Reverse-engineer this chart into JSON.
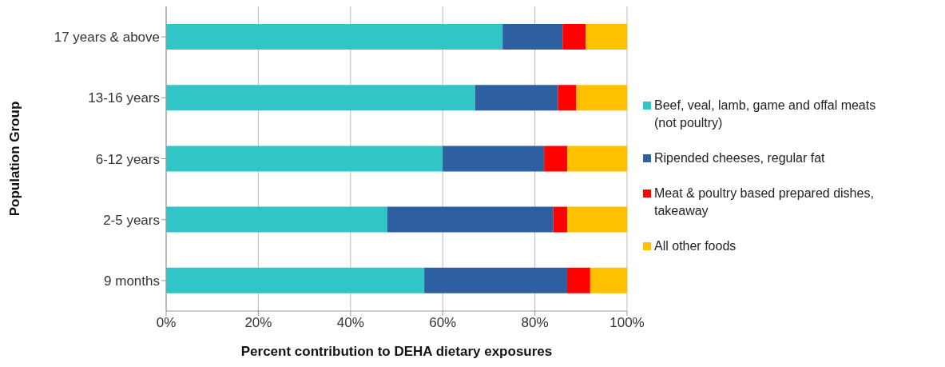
{
  "chart_data": {
    "type": "bar",
    "orientation": "horizontal",
    "stacked": true,
    "xlabel": "Percent contribution  to DEHA dietary  exposures",
    "ylabel": "Population  Group",
    "categories": [
      "17 years & above",
      "13-16 years",
      "6-12 years",
      "2-5 years",
      "9 months"
    ],
    "series": [
      {
        "name": "Beef, veal, lamb, game and offal meats (not poultry)",
        "color": "#31c6c6",
        "values": [
          73,
          67,
          60,
          48,
          56
        ]
      },
      {
        "name": "Ripended cheeses, regular fat",
        "color": "#2e5fa0",
        "values": [
          13,
          18,
          22,
          36,
          31
        ]
      },
      {
        "name": "Meat & poultry based prepared dishes, takeaway",
        "color": "#ff0000",
        "values": [
          5,
          4,
          5,
          3,
          5
        ]
      },
      {
        "name": "All other foods",
        "color": "#ffc000",
        "values": [
          9,
          11,
          13,
          13,
          8
        ]
      }
    ],
    "xlim": [
      0,
      100
    ],
    "xticks": [
      {
        "value": 0,
        "label": "0%"
      },
      {
        "value": 20,
        "label": "20%"
      },
      {
        "value": 40,
        "label": "40%"
      },
      {
        "value": 60,
        "label": "60%"
      },
      {
        "value": 80,
        "label": "80%"
      },
      {
        "value": 100,
        "label": "100%"
      }
    ],
    "grid": "x",
    "legend": "right"
  }
}
